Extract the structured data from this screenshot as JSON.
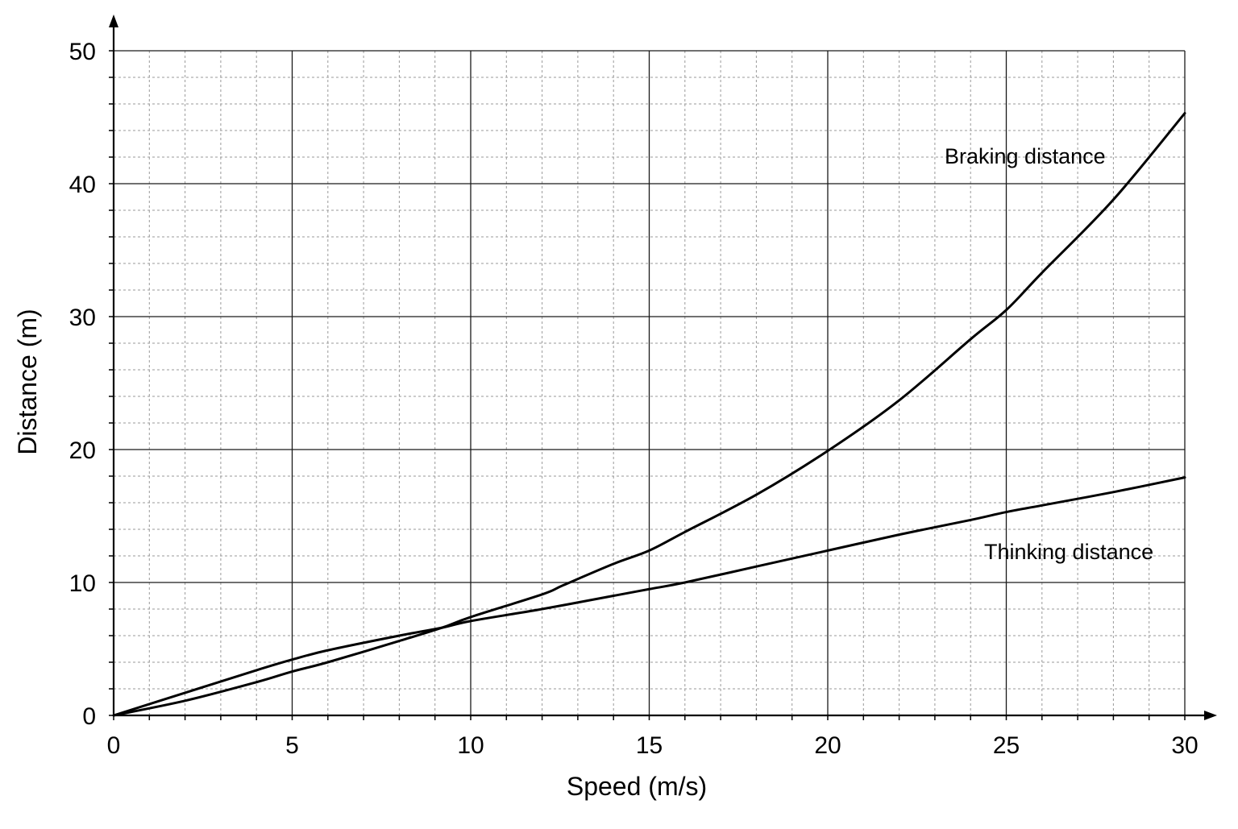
{
  "chart_data": {
    "type": "line",
    "xlabel": "Speed (m/s)",
    "ylabel": "Distance (m)",
    "xlim": [
      0,
      30
    ],
    "ylim": [
      0,
      50
    ],
    "xticks": [
      0,
      5,
      10,
      15,
      20,
      25,
      30
    ],
    "yticks": [
      0,
      10,
      20,
      30,
      40,
      50
    ],
    "xtick_labels": [
      "0",
      "5",
      "10",
      "15",
      "20",
      "25",
      "30"
    ],
    "ytick_labels": [
      "0",
      "10",
      "20",
      "30",
      "40",
      "50"
    ],
    "grid": {
      "major": true,
      "minor": true,
      "minor_step_x": 1,
      "minor_step_y": 2
    },
    "series": [
      {
        "name": "Braking distance",
        "x": [
          0,
          2,
          4,
          5,
          6,
          8,
          9.2,
          10,
          12,
          12.6,
          14,
          15,
          16,
          18,
          20,
          22,
          24,
          25,
          26,
          28,
          30
        ],
        "y": [
          0,
          1.1,
          2.5,
          3.3,
          4.0,
          5.6,
          6.6,
          7.4,
          9.1,
          9.8,
          11.4,
          12.4,
          13.8,
          16.6,
          19.9,
          23.7,
          28.3,
          30.5,
          33.3,
          38.8,
          45.3
        ],
        "color": "#000000"
      },
      {
        "name": "Thinking distance",
        "x": [
          0,
          2,
          4,
          5,
          6,
          8,
          9.2,
          10,
          12,
          14,
          15,
          16,
          18,
          20,
          22,
          24,
          25,
          26,
          28,
          30
        ],
        "y": [
          0,
          1.7,
          3.4,
          4.2,
          4.9,
          6.0,
          6.6,
          7.1,
          8.0,
          9.0,
          9.5,
          10.0,
          11.2,
          12.4,
          13.6,
          14.7,
          15.3,
          15.8,
          16.8,
          17.9
        ],
        "color": "#000000"
      }
    ],
    "annotations": [
      "Braking distance",
      "Thinking distance"
    ]
  }
}
